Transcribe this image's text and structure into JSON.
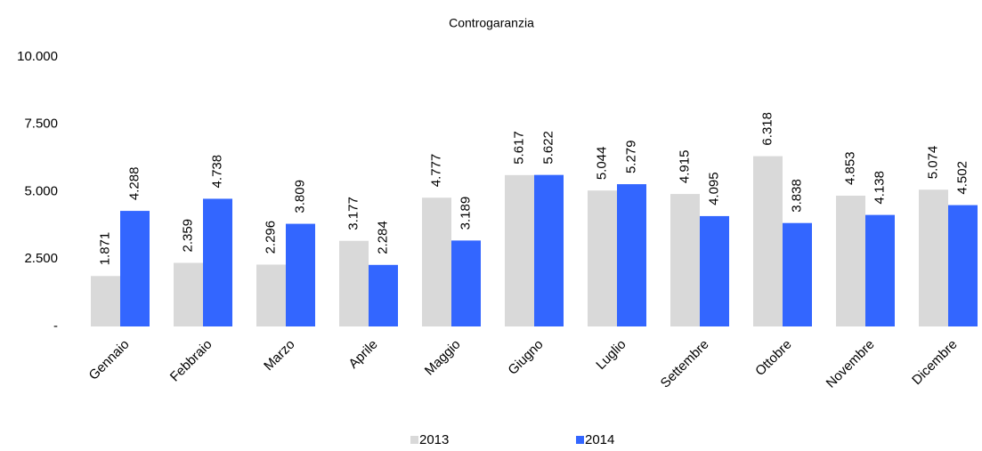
{
  "chart_data": {
    "type": "bar",
    "title": "Controgaranzia",
    "categories": [
      "Gennaio",
      "Febbraio",
      "Marzo",
      "Aprile",
      "Maggio",
      "Giugno",
      "Luglio",
      "Settembre",
      "Ottobre",
      "Novembre",
      "Dicembre"
    ],
    "series": [
      {
        "name": "2013",
        "color": "#d9d9d9",
        "values": [
          1871,
          2359,
          2296,
          3177,
          4777,
          5617,
          5044,
          4915,
          6318,
          4853,
          5074
        ],
        "value_labels": [
          "1.871",
          "2.359",
          "2.296",
          "3.177",
          "4.777",
          "5.617",
          "5.044",
          "4.915",
          "6.318",
          "4.853",
          "5.074"
        ]
      },
      {
        "name": "2014",
        "color": "#3366ff",
        "values": [
          4288,
          4738,
          3809,
          2284,
          3189,
          5622,
          5279,
          4095,
          3838,
          4138,
          4502
        ],
        "value_labels": [
          "4.288",
          "4.738",
          "3.809",
          "2.284",
          "3.189",
          "5.622",
          "5.279",
          "4.095",
          "3.838",
          "4.138",
          "4.502"
        ]
      }
    ],
    "ylim": [
      0,
      10000
    ],
    "yticks": [
      {
        "value": 0,
        "label": "-"
      },
      {
        "value": 2500,
        "label": "2.500"
      },
      {
        "value": 5000,
        "label": "5.000"
      },
      {
        "value": 7500,
        "label": "7.500"
      },
      {
        "value": 10000,
        "label": "10.000"
      }
    ],
    "grid": false,
    "legend": "bottom"
  }
}
